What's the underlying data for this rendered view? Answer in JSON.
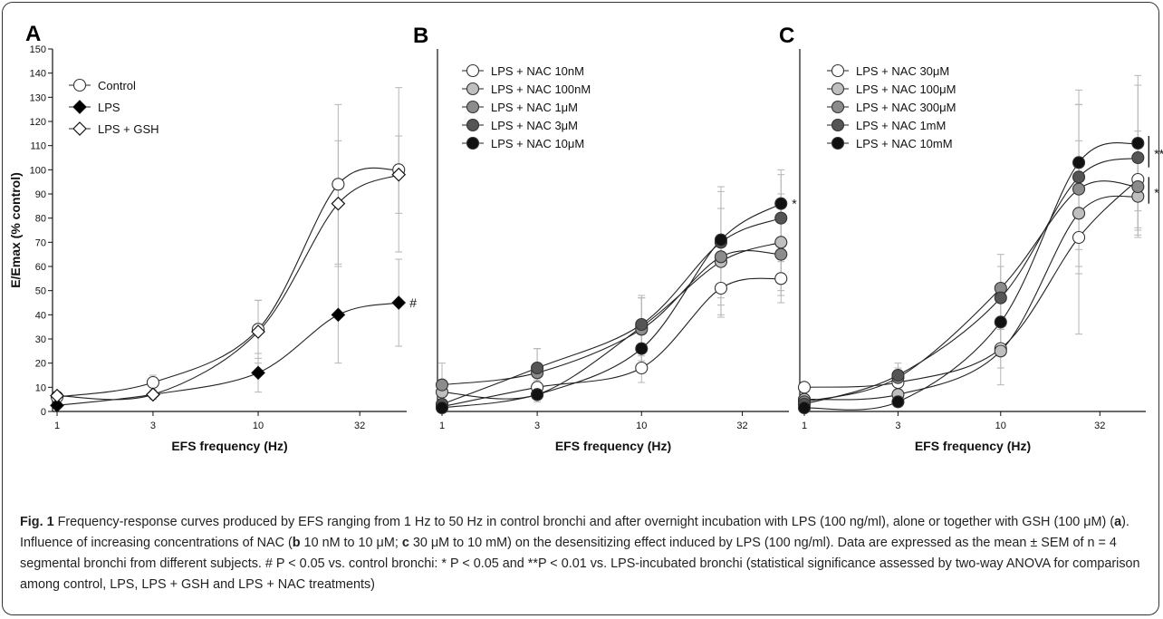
{
  "chart_data": [
    {
      "type": "scatter",
      "panel": "A",
      "xlabel": "EFS frequency (Hz)",
      "ylabel": "E/Emax (% control)",
      "x_scale": "log",
      "xticks": [
        1,
        3,
        10,
        32
      ],
      "ylim": [
        0,
        150
      ],
      "yticks": [
        0,
        10,
        20,
        30,
        40,
        50,
        60,
        70,
        80,
        90,
        100,
        110,
        120,
        130,
        140,
        150
      ],
      "legend_position": "top-left",
      "x": [
        1,
        3,
        10,
        25,
        50
      ],
      "series": [
        {
          "name": "Control",
          "marker": "circle",
          "fill": "#ffffff",
          "values": [
            6,
            12,
            34,
            94,
            100
          ],
          "sem": [
            1,
            3,
            12,
            33,
            34
          ]
        },
        {
          "name": "LPS",
          "marker": "diamond",
          "fill": "#000000",
          "values": [
            2.5,
            7,
            16,
            40,
            45
          ],
          "sem": [
            1,
            2,
            8,
            20,
            18
          ]
        },
        {
          "name": "LPS + GSH",
          "marker": "diamond",
          "fill": "#ffffff",
          "values": [
            6.5,
            7,
            33,
            86,
            98
          ],
          "sem": [
            1,
            2,
            13,
            26,
            16
          ]
        }
      ],
      "annotations": [
        {
          "text": "#",
          "series": "LPS",
          "x": 50
        }
      ]
    },
    {
      "type": "scatter",
      "panel": "B",
      "xlabel": "EFS frequency (Hz)",
      "ylabel": "",
      "x_scale": "log",
      "xticks": [
        1,
        3,
        10,
        32
      ],
      "ylim": [
        0,
        150
      ],
      "legend_position": "top-left",
      "x": [
        1,
        3,
        10,
        25,
        50
      ],
      "series": [
        {
          "name": "LPS + NAC 10nM",
          "marker": "circle",
          "fill": "#ffffff",
          "values": [
            2,
            10,
            18,
            51,
            55
          ],
          "sem": [
            1,
            3,
            6,
            12,
            10
          ]
        },
        {
          "name": "LPS + NAC 100nM",
          "marker": "circle",
          "fill": "#bfbfbf",
          "values": [
            8,
            7,
            35,
            62,
            70
          ],
          "sem": [
            3,
            3,
            12,
            22,
            20
          ]
        },
        {
          "name": "LPS + NAC 1μM",
          "marker": "circle",
          "fill": "#8c8c8c",
          "values": [
            11,
            16,
            34,
            64,
            65
          ],
          "sem": [
            9,
            10,
            13,
            20,
            17
          ]
        },
        {
          "name": "LPS + NAC 3μM",
          "marker": "circle",
          "fill": "#555555",
          "values": [
            3,
            18,
            36,
            70,
            80
          ],
          "sem": [
            1,
            8,
            12,
            23,
            18
          ]
        },
        {
          "name": "LPS + NAC 10μM",
          "marker": "circle",
          "fill": "#111111",
          "values": [
            1.5,
            7,
            26,
            71,
            86
          ],
          "sem": [
            1,
            2,
            10,
            20,
            14
          ]
        }
      ],
      "annotations": [
        {
          "text": "*",
          "series": "LPS + NAC 10μM",
          "x": 50
        }
      ]
    },
    {
      "type": "scatter",
      "panel": "C",
      "xlabel": "EFS frequency (Hz)",
      "ylabel": "",
      "x_scale": "log",
      "xticks": [
        1,
        3,
        10,
        32
      ],
      "ylim": [
        0,
        150
      ],
      "legend_position": "top-left",
      "x": [
        1,
        3,
        10,
        25,
        50
      ],
      "series": [
        {
          "name": "LPS + NAC 30μM",
          "marker": "circle",
          "fill": "#ffffff",
          "values": [
            10,
            12,
            26,
            72,
            96
          ],
          "sem": [
            1,
            4,
            8,
            40,
            20
          ]
        },
        {
          "name": "LPS + NAC 100μM",
          "marker": "circle",
          "fill": "#bfbfbf",
          "values": [
            5,
            7,
            25,
            82,
            89
          ],
          "sem": [
            1,
            3,
            14,
            22,
            17
          ]
        },
        {
          "name": "LPS + NAC 300μM",
          "marker": "circle",
          "fill": "#8c8c8c",
          "values": [
            4,
            14,
            51,
            92,
            93
          ],
          "sem": [
            1,
            4,
            14,
            35,
            20
          ]
        },
        {
          "name": "LPS + NAC 1mM",
          "marker": "circle",
          "fill": "#555555",
          "values": [
            3,
            15,
            47,
            97,
            105
          ],
          "sem": [
            1,
            5,
            13,
            30,
            30
          ]
        },
        {
          "name": "LPS + NAC 10mM",
          "marker": "circle",
          "fill": "#111111",
          "values": [
            1.5,
            4,
            37,
            103,
            111
          ],
          "sem": [
            1,
            2,
            12,
            30,
            28
          ]
        }
      ],
      "annotations": [
        {
          "text": "**",
          "series": [
            "LPS + NAC 1mM",
            "LPS + NAC 10mM"
          ],
          "x": 50
        },
        {
          "text": "*",
          "series": [
            "LPS + NAC 30μM",
            "LPS + NAC 100μM",
            "LPS + NAC 300μM"
          ],
          "x": 50
        }
      ]
    }
  ],
  "caption": {
    "fig_label": "Fig. 1",
    "t1": " Frequency-response curves produced by EFS ranging from 1 Hz to 50 Hz in control bronchi and after overnight incubation with LPS (100 ng/ml), alone or together with GSH (100 μM) (",
    "b1": "a",
    "t2": "). Influence of increasing concentrations of NAC (",
    "b2": "b",
    "t3": " 10 nM to 10 μM; ",
    "b3": "c",
    "t4": " 30 μM to 10 mM) on the desensitizing effect induced by LPS (100 ng/ml). Data are expressed as the mean ± SEM of n = 4 segmental bronchi from different subjects. # P < 0.05 vs. control bronchi: * P < 0.05 and **P < 0.01 vs. LPS-incubated bronchi (statistical significance assessed by two-way ANOVA for comparison among control, LPS, LPS + GSH and LPS + NAC treatments)"
  }
}
